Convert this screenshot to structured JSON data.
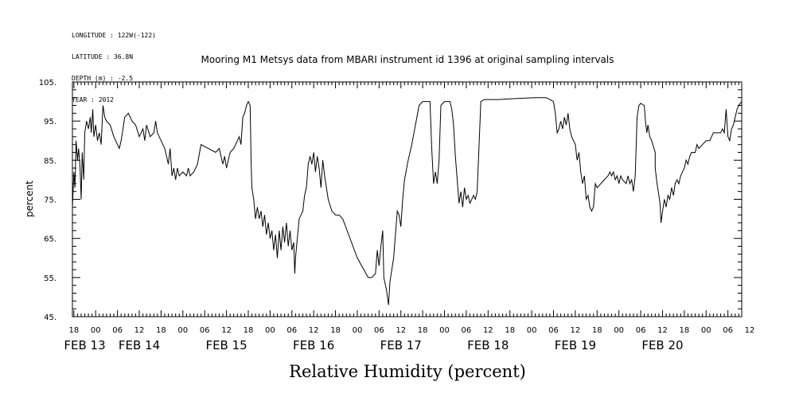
{
  "header": {
    "lines": [
      "LONGITUDE : 122W(-122)",
      "LATITUDE : 36.8N",
      "DEPTH (m) : -2.5",
      "YEAR : 2012"
    ]
  },
  "chart_data": {
    "type": "line",
    "title": "Mooring M1 Metsys data from MBARI instrument id 1396 at original sampling intervals",
    "bottom_title": "Relative Humidity (percent)",
    "ylabel": "percent",
    "xlabel": "",
    "ylim": [
      45,
      105
    ],
    "yticks": [
      "105.",
      "95.",
      "85.",
      "75.",
      "65.",
      "55.",
      "45."
    ],
    "xlim": [
      17.6,
      201.8
    ],
    "hour_ticks": [
      {
        "h": 18,
        "label": "18"
      },
      {
        "h": 24,
        "label": "00"
      },
      {
        "h": 30,
        "label": "06"
      },
      {
        "h": 36,
        "label": "12"
      },
      {
        "h": 42,
        "label": "18"
      },
      {
        "h": 48,
        "label": "00"
      },
      {
        "h": 54,
        "label": "06"
      },
      {
        "h": 60,
        "label": "12"
      },
      {
        "h": 66,
        "label": "18"
      },
      {
        "h": 72,
        "label": "00"
      },
      {
        "h": 78,
        "label": "06"
      },
      {
        "h": 84,
        "label": "12"
      },
      {
        "h": 90,
        "label": "18"
      },
      {
        "h": 96,
        "label": "00"
      },
      {
        "h": 102,
        "label": "06"
      },
      {
        "h": 108,
        "label": "12"
      },
      {
        "h": 114,
        "label": "18"
      },
      {
        "h": 120,
        "label": "00"
      },
      {
        "h": 126,
        "label": "06"
      },
      {
        "h": 132,
        "label": "12"
      },
      {
        "h": 138,
        "label": "18"
      },
      {
        "h": 144,
        "label": "00"
      },
      {
        "h": 150,
        "label": "06"
      },
      {
        "h": 156,
        "label": "12"
      },
      {
        "h": 162,
        "label": "18"
      },
      {
        "h": 168,
        "label": "00"
      },
      {
        "h": 174,
        "label": "06"
      },
      {
        "h": 180,
        "label": "12"
      },
      {
        "h": 186,
        "label": "18"
      },
      {
        "h": 192,
        "label": "00"
      },
      {
        "h": 198,
        "label": "06"
      },
      {
        "h": 204,
        "label": "12"
      }
    ],
    "day_labels": [
      {
        "h": 21,
        "label": "FEB 13"
      },
      {
        "h": 36,
        "label": "FEB 14"
      },
      {
        "h": 60,
        "label": "FEB 15"
      },
      {
        "h": 84,
        "label": "FEB 16"
      },
      {
        "h": 108,
        "label": "FEB 17"
      },
      {
        "h": 132,
        "label": "FEB 18"
      },
      {
        "h": 156,
        "label": "FEB 19"
      },
      {
        "h": 180,
        "label": "FEB 20"
      }
    ],
    "series": [
      {
        "points": [
          [
            17.6,
            73
          ],
          [
            18.0,
            82
          ],
          [
            18.3,
            78
          ],
          [
            18.6,
            90
          ],
          [
            19.0,
            85
          ],
          [
            19.3,
            88
          ],
          [
            19.7,
            83
          ],
          [
            20.0,
            75
          ],
          [
            20.3,
            87
          ],
          [
            20.7,
            80
          ],
          [
            21.0,
            92
          ],
          [
            21.5,
            95
          ],
          [
            22.0,
            93
          ],
          [
            22.5,
            96
          ],
          [
            22.8,
            92
          ],
          [
            23.2,
            98
          ],
          [
            23.5,
            91
          ],
          [
            24.0,
            94
          ],
          [
            24.5,
            90
          ],
          [
            25.0,
            92
          ],
          [
            25.5,
            89
          ],
          [
            26.0,
            99
          ],
          [
            26.5,
            96
          ],
          [
            27.0,
            95
          ],
          [
            28.0,
            94
          ],
          [
            29.0,
            91
          ],
          [
            30.0,
            89
          ],
          [
            30.5,
            88
          ],
          [
            31.0,
            90
          ],
          [
            31.5,
            93
          ],
          [
            32.0,
            96
          ],
          [
            33.0,
            97
          ],
          [
            34.0,
            95
          ],
          [
            35.0,
            94
          ],
          [
            36.0,
            91
          ],
          [
            37.0,
            93
          ],
          [
            37.5,
            90
          ],
          [
            38.0,
            94
          ],
          [
            39.0,
            91
          ],
          [
            40.0,
            92
          ],
          [
            40.5,
            95
          ],
          [
            41.0,
            92
          ],
          [
            42.0,
            90
          ],
          [
            43.0,
            88
          ],
          [
            43.5,
            86
          ],
          [
            44.0,
            84
          ],
          [
            44.5,
            88
          ],
          [
            45.0,
            81
          ],
          [
            45.5,
            83
          ],
          [
            46.0,
            80
          ],
          [
            46.5,
            83
          ],
          [
            47.0,
            81
          ],
          [
            48.0,
            82
          ],
          [
            49.0,
            81
          ],
          [
            49.5,
            83
          ],
          [
            50.0,
            81
          ],
          [
            51.0,
            82
          ],
          [
            52.0,
            84
          ],
          [
            53.0,
            89
          ],
          [
            55.0,
            88
          ],
          [
            57.0,
            87
          ],
          [
            58.0,
            88
          ],
          [
            59.0,
            84
          ],
          [
            59.5,
            86
          ],
          [
            60.0,
            83
          ],
          [
            60.5,
            85
          ],
          [
            61.0,
            87
          ],
          [
            62.0,
            88
          ],
          [
            63.0,
            90
          ],
          [
            63.5,
            91
          ],
          [
            64.0,
            89
          ],
          [
            64.5,
            96
          ],
          [
            65.0,
            97
          ],
          [
            65.5,
            99
          ],
          [
            66.0,
            100
          ],
          [
            66.5,
            99
          ],
          [
            66.8,
            84
          ],
          [
            67.0,
            78
          ],
          [
            67.5,
            75
          ],
          [
            68.0,
            70
          ],
          [
            68.5,
            73
          ],
          [
            69.0,
            70
          ],
          [
            69.5,
            72
          ],
          [
            70.0,
            68
          ],
          [
            70.5,
            71
          ],
          [
            71.0,
            66
          ],
          [
            71.5,
            69
          ],
          [
            72.0,
            65
          ],
          [
            72.5,
            67
          ],
          [
            73.0,
            62
          ],
          [
            73.5,
            66
          ],
          [
            74.0,
            60
          ],
          [
            74.5,
            67
          ],
          [
            75.0,
            62
          ],
          [
            75.5,
            68
          ],
          [
            76.0,
            64
          ],
          [
            76.5,
            69
          ],
          [
            77.0,
            63
          ],
          [
            77.5,
            67
          ],
          [
            78.0,
            62
          ],
          [
            78.5,
            64
          ],
          [
            78.8,
            56
          ],
          [
            79.0,
            60
          ],
          [
            80.0,
            70
          ],
          [
            81.0,
            72
          ],
          [
            81.5,
            76
          ],
          [
            82.0,
            78
          ],
          [
            82.5,
            84
          ],
          [
            83.0,
            86
          ],
          [
            83.5,
            84
          ],
          [
            84.0,
            87
          ],
          [
            84.5,
            82
          ],
          [
            85.0,
            86
          ],
          [
            85.5,
            83
          ],
          [
            86.0,
            78
          ],
          [
            86.5,
            85
          ],
          [
            87.0,
            81
          ],
          [
            88.0,
            75
          ],
          [
            89.0,
            72
          ],
          [
            90.0,
            71
          ],
          [
            91.0,
            71
          ],
          [
            92.0,
            70
          ],
          [
            96.0,
            60
          ],
          [
            99.0,
            55
          ],
          [
            100.0,
            55
          ],
          [
            101.0,
            56
          ],
          [
            101.5,
            62
          ],
          [
            102.0,
            58
          ],
          [
            102.5,
            63
          ],
          [
            103.0,
            67
          ],
          [
            103.3,
            55
          ],
          [
            104.0,
            52
          ],
          [
            104.6,
            48
          ],
          [
            105.0,
            54
          ],
          [
            106.0,
            60
          ],
          [
            107.0,
            72
          ],
          [
            107.5,
            71
          ],
          [
            108.0,
            68
          ],
          [
            108.5,
            75
          ],
          [
            109.0,
            80
          ],
          [
            110.0,
            85
          ],
          [
            111.0,
            89
          ],
          [
            112.0,
            94
          ],
          [
            113.0,
            99
          ],
          [
            114.0,
            100
          ],
          [
            115.0,
            100
          ],
          [
            116.0,
            100
          ],
          [
            116.5,
            88
          ],
          [
            117.0,
            79
          ],
          [
            117.5,
            82
          ],
          [
            118.0,
            79
          ],
          [
            118.5,
            85
          ],
          [
            119.0,
            99
          ],
          [
            120.0,
            100
          ],
          [
            121.0,
            100
          ],
          [
            121.5,
            100
          ],
          [
            122.0,
            98
          ],
          [
            122.5,
            94
          ],
          [
            123.0,
            86
          ],
          [
            123.5,
            80
          ],
          [
            124.0,
            74
          ],
          [
            124.5,
            77
          ],
          [
            125.0,
            73
          ],
          [
            125.5,
            78
          ],
          [
            126.0,
            75
          ],
          [
            126.5,
            76
          ],
          [
            127.0,
            74
          ],
          [
            128.0,
            76
          ],
          [
            128.5,
            75
          ],
          [
            129.0,
            77
          ],
          [
            130.0,
            100
          ],
          [
            131.0,
            100.5
          ],
          [
            135.0,
            100.5
          ],
          [
            140.0,
            100.8
          ],
          [
            145.0,
            101
          ],
          [
            148.0,
            101
          ],
          [
            150.0,
            100
          ],
          [
            150.5,
            97
          ],
          [
            151.0,
            92
          ],
          [
            151.5,
            93
          ],
          [
            152.0,
            95
          ],
          [
            152.5,
            93
          ],
          [
            153.0,
            96
          ],
          [
            153.5,
            94
          ],
          [
            154.0,
            97
          ],
          [
            154.5,
            93
          ],
          [
            155.0,
            91
          ],
          [
            156.0,
            89
          ],
          [
            156.5,
            85
          ],
          [
            157.0,
            87
          ],
          [
            157.5,
            82
          ],
          [
            158.0,
            79
          ],
          [
            158.5,
            81
          ],
          [
            159.0,
            75
          ],
          [
            159.5,
            76
          ],
          [
            160.0,
            73
          ],
          [
            160.5,
            72
          ],
          [
            161.0,
            73
          ],
          [
            161.5,
            79
          ],
          [
            162.0,
            78
          ],
          [
            163.0,
            79
          ],
          [
            164.0,
            80
          ],
          [
            165.0,
            81
          ],
          [
            165.5,
            82
          ],
          [
            166.0,
            81
          ],
          [
            166.5,
            82
          ],
          [
            167.0,
            80
          ],
          [
            167.5,
            81
          ],
          [
            168.0,
            79
          ],
          [
            168.5,
            81
          ],
          [
            169.0,
            80
          ],
          [
            170.0,
            79
          ],
          [
            170.5,
            81
          ],
          [
            171.0,
            79
          ],
          [
            171.5,
            80
          ],
          [
            172.0,
            77
          ],
          [
            172.5,
            81
          ],
          [
            173.0,
            96
          ],
          [
            173.5,
            99
          ],
          [
            174.0,
            99.5
          ],
          [
            175.0,
            99
          ],
          [
            175.3,
            95
          ],
          [
            175.7,
            92
          ],
          [
            176.0,
            94
          ],
          [
            176.5,
            91
          ],
          [
            177.0,
            90
          ],
          [
            178.0,
            87
          ],
          [
            178.0,
            83
          ],
          [
            178.5,
            79
          ],
          [
            179.0,
            76
          ],
          [
            179.3,
            74
          ],
          [
            179.6,
            69
          ],
          [
            180.0,
            72
          ],
          [
            180.5,
            75
          ],
          [
            181.0,
            73
          ],
          [
            181.5,
            76
          ],
          [
            182.0,
            75
          ],
          [
            182.5,
            78
          ],
          [
            183.0,
            76
          ],
          [
            183.5,
            79
          ],
          [
            184.0,
            80
          ],
          [
            184.5,
            79
          ],
          [
            185.0,
            81
          ],
          [
            185.5,
            82
          ],
          [
            186.0,
            83
          ],
          [
            186.5,
            85
          ],
          [
            187.0,
            84
          ],
          [
            187.5,
            86
          ],
          [
            188.0,
            87
          ],
          [
            189.0,
            87
          ],
          [
            189.5,
            89
          ],
          [
            190.0,
            88
          ],
          [
            191.0,
            89
          ],
          [
            192.0,
            90
          ],
          [
            193.0,
            90
          ],
          [
            193.5,
            91
          ],
          [
            194.0,
            92
          ],
          [
            195.0,
            92
          ],
          [
            196.0,
            92
          ],
          [
            196.5,
            93
          ],
          [
            197.0,
            92
          ],
          [
            197.5,
            98
          ],
          [
            198.0,
            91
          ],
          [
            198.5,
            90
          ],
          [
            199.0,
            93
          ],
          [
            199.5,
            94
          ],
          [
            200.0,
            96
          ],
          [
            200.5,
            98
          ],
          [
            201.0,
            99
          ],
          [
            201.8,
            100
          ]
        ]
      }
    ]
  }
}
